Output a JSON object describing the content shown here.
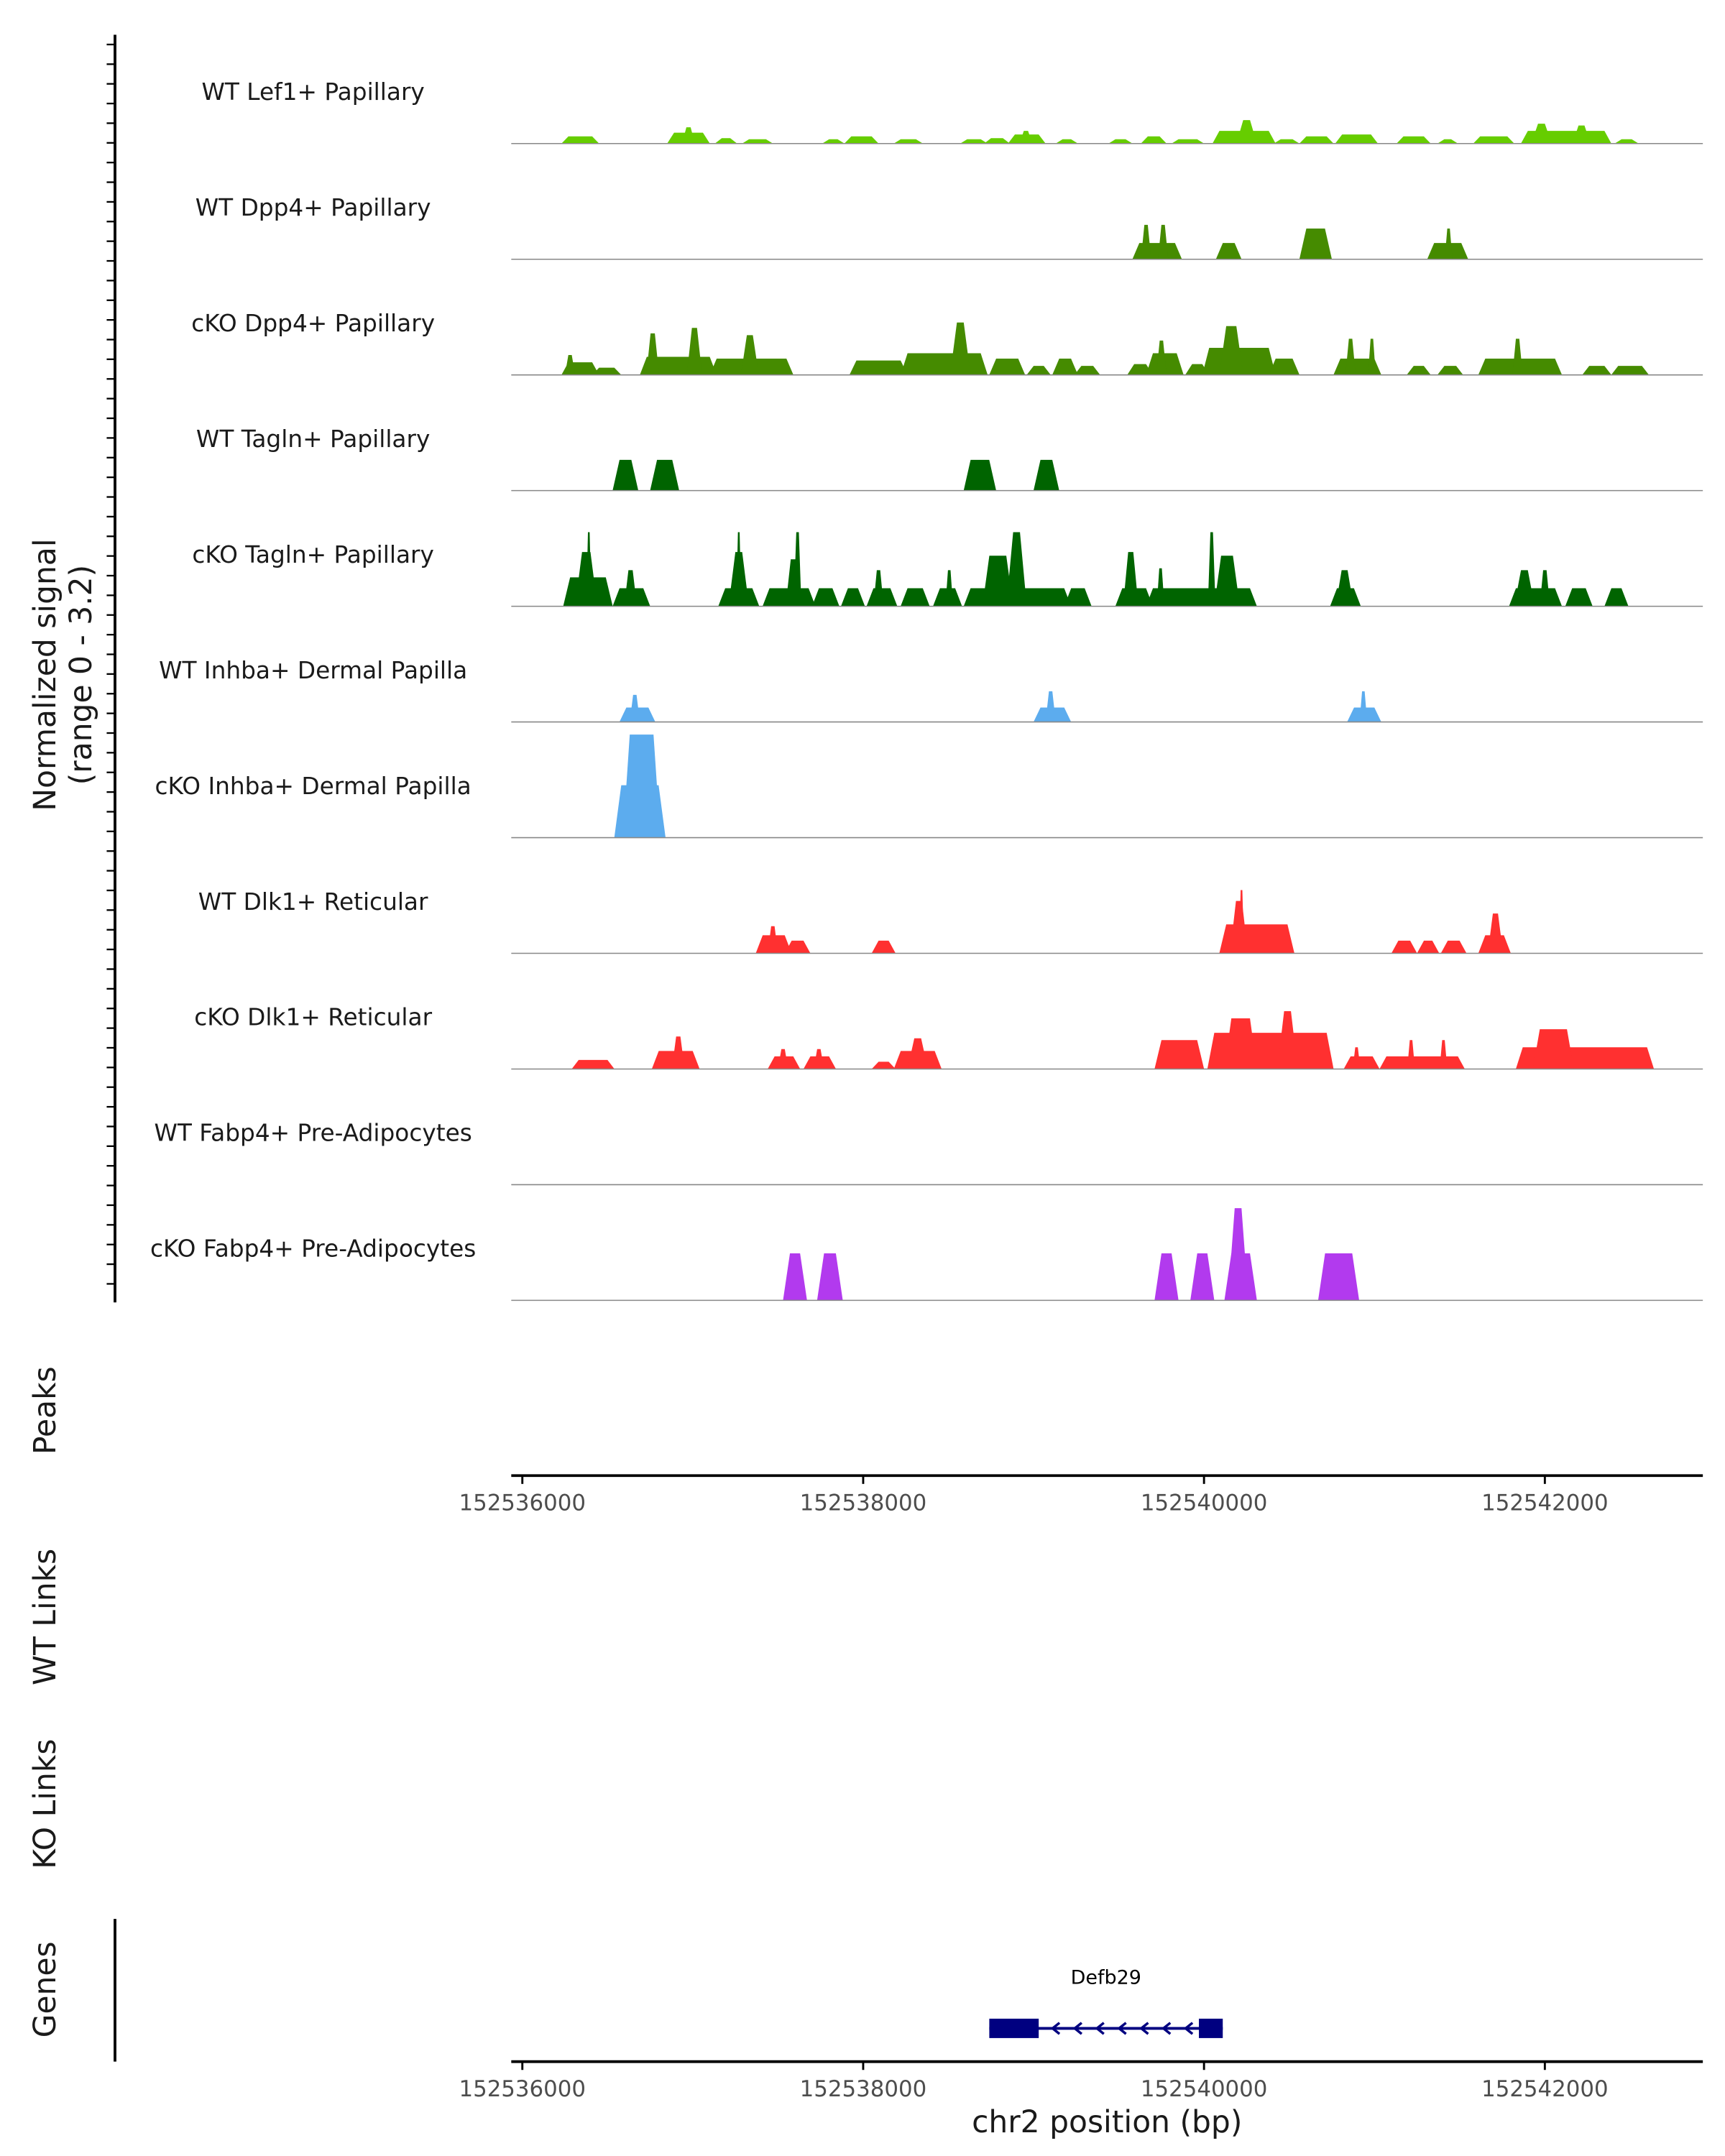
{
  "chart_data": {
    "type": "area",
    "title": "",
    "ylabel": "Normalized signal",
    "ylabel_sub": "(range 0 - 3.2)",
    "ylim": [
      0,
      3.2
    ],
    "xlabel": "chr2 position (bp)",
    "xlim": [
      152535935,
      152542927
    ],
    "xticks": [
      152536000,
      152538000,
      152540000,
      152542000
    ],
    "xtick_labels": [
      "152536000",
      "152538000",
      "152540000",
      "152542000"
    ],
    "panel_labels": {
      "peaks": "Peaks",
      "wt_links": "WT Links",
      "ko_links": "KO Links",
      "genes": "Genes"
    },
    "note": "blocks are [start_bp, end_bp, normalized_signal]",
    "tracks": [
      {
        "name": "WT Lef1+ Papillary",
        "color": "#66CD00",
        "blocks": [
          [
            152536250,
            152536430,
            0.2
          ],
          [
            152536870,
            152537080,
            0.3
          ],
          [
            152536950,
            152537000,
            0.45
          ],
          [
            152537150,
            152537240,
            0.15
          ],
          [
            152537310,
            152537450,
            0.12
          ],
          [
            152537780,
            152537870,
            0.12
          ],
          [
            152537910,
            152538070,
            0.2
          ],
          [
            152538200,
            152538330,
            0.12
          ],
          [
            152538590,
            152538710,
            0.12
          ],
          [
            152538730,
            152538840,
            0.15
          ],
          [
            152538870,
            152539050,
            0.25
          ],
          [
            152538930,
            152538980,
            0.35
          ],
          [
            152539150,
            152539240,
            0.12
          ],
          [
            152539460,
            152539560,
            0.12
          ],
          [
            152539650,
            152539760,
            0.2
          ],
          [
            152539830,
            152539980,
            0.12
          ],
          [
            152540070,
            152540400,
            0.35
          ],
          [
            152540210,
            152540290,
            0.65
          ],
          [
            152540430,
            152540540,
            0.12
          ],
          [
            152540580,
            152540740,
            0.2
          ],
          [
            152540790,
            152541000,
            0.25
          ],
          [
            152541150,
            152541310,
            0.2
          ],
          [
            152541390,
            152541470,
            0.12
          ],
          [
            152541600,
            152541800,
            0.2
          ],
          [
            152541880,
            152542370,
            0.35
          ],
          [
            152541940,
            152542020,
            0.55
          ],
          [
            152542180,
            152542250,
            0.5
          ],
          [
            152542430,
            152542530,
            0.12
          ]
        ]
      },
      {
        "name": "WT Dpp4+ Papillary",
        "color": "#458B00",
        "blocks": [
          [
            152539600,
            152539850,
            0.45
          ],
          [
            152539640,
            152539680,
            0.95
          ],
          [
            152539740,
            152539780,
            0.95
          ],
          [
            152540090,
            152540200,
            0.45
          ],
          [
            152540580,
            152540730,
            0.85
          ],
          [
            152541330,
            152541530,
            0.45
          ],
          [
            152541420,
            152541450,
            0.85
          ]
        ]
      },
      {
        "name": "cKO Dpp4+ Papillary",
        "color": "#458B00",
        "blocks": [
          [
            152536250,
            152536430,
            0.35
          ],
          [
            152536260,
            152536300,
            0.55
          ],
          [
            152536430,
            152536560,
            0.2
          ],
          [
            152536710,
            152537120,
            0.5
          ],
          [
            152536740,
            152536790,
            1.15
          ],
          [
            152536980,
            152537040,
            1.3
          ],
          [
            152537120,
            152537570,
            0.45
          ],
          [
            152537300,
            152537370,
            1.1
          ],
          [
            152537940,
            152538240,
            0.4
          ],
          [
            152538240,
            152538710,
            0.6
          ],
          [
            152538530,
            152538610,
            1.45
          ],
          [
            152538760,
            152538930,
            0.45
          ],
          [
            152538980,
            152539080,
            0.25
          ],
          [
            152539130,
            152539240,
            0.45
          ],
          [
            152539260,
            152539370,
            0.25
          ],
          [
            152539570,
            152539680,
            0.3
          ],
          [
            152539680,
            152539860,
            0.6
          ],
          [
            152539730,
            152539770,
            0.95
          ],
          [
            152539910,
            152540010,
            0.3
          ],
          [
            152540010,
            152540400,
            0.75
          ],
          [
            152540110,
            152540210,
            1.35
          ],
          [
            152540400,
            152540540,
            0.45
          ],
          [
            152540780,
            152541020,
            0.45
          ],
          [
            152540840,
            152540880,
            1.0
          ],
          [
            152540970,
            152541000,
            1.0
          ],
          [
            152541210,
            152541310,
            0.25
          ],
          [
            152541390,
            152541500,
            0.25
          ],
          [
            152541630,
            152542080,
            0.45
          ],
          [
            152541820,
            152541860,
            1.0
          ],
          [
            152542240,
            152542370,
            0.25
          ],
          [
            152542410,
            152542590,
            0.25
          ]
        ]
      },
      {
        "name": "WT Tagln+ Papillary",
        "color": "#006400",
        "blocks": [
          [
            152536550,
            152536660,
            0.85
          ],
          [
            152536770,
            152536900,
            0.85
          ],
          [
            152538610,
            152538760,
            0.85
          ],
          [
            152539020,
            152539130,
            0.85
          ]
        ]
      },
      {
        "name": "cKO Tagln+ Papillary",
        "color": "#006400",
        "blocks": [
          [
            152536260,
            152536510,
            0.8
          ],
          [
            152536330,
            152536420,
            1.5
          ],
          [
            152536380,
            152536400,
            2.05
          ],
          [
            152536550,
            152536730,
            0.5
          ],
          [
            152536610,
            152536660,
            1.0
          ],
          [
            152537170,
            152537370,
            0.5
          ],
          [
            152537230,
            152537310,
            1.5
          ],
          [
            152537260,
            152537280,
            2.05
          ],
          [
            152537430,
            152537700,
            0.5
          ],
          [
            152537560,
            152537620,
            1.3
          ],
          [
            152537600,
            152537630,
            2.05
          ],
          [
            152537720,
            152537840,
            0.5
          ],
          [
            152537890,
            152537990,
            0.5
          ],
          [
            152538040,
            152538180,
            0.5
          ],
          [
            152538070,
            152538110,
            1.0
          ],
          [
            152538240,
            152538370,
            0.5
          ],
          [
            152538430,
            152538560,
            0.5
          ],
          [
            152538490,
            152538520,
            1.0
          ],
          [
            152538610,
            152539200,
            0.5
          ],
          [
            152538720,
            152538860,
            1.4
          ],
          [
            152538860,
            152538940,
            2.05
          ],
          [
            152539200,
            152539320,
            0.5
          ],
          [
            152539500,
            152539680,
            0.5
          ],
          [
            152539540,
            152539600,
            1.5
          ],
          [
            152539680,
            152540290,
            0.5
          ],
          [
            152539730,
            152539760,
            1.05
          ],
          [
            152540030,
            152540060,
            2.05
          ],
          [
            152540080,
            152540190,
            1.4
          ],
          [
            152540760,
            152540900,
            0.5
          ],
          [
            152540790,
            152540860,
            1.0
          ],
          [
            152541810,
            152542080,
            0.5
          ],
          [
            152541840,
            152541920,
            1.0
          ],
          [
            152541980,
            152542020,
            1.0
          ],
          [
            152542140,
            152542260,
            0.5
          ],
          [
            152542370,
            152542470,
            0.5
          ]
        ]
      },
      {
        "name": "WT Inhba+ Dermal Papilla",
        "color": "#5CACEE",
        "blocks": [
          [
            152536590,
            152536760,
            0.4
          ],
          [
            152536640,
            152536680,
            0.75
          ],
          [
            152539020,
            152539200,
            0.4
          ],
          [
            152539080,
            152539120,
            0.85
          ],
          [
            152540860,
            152541020,
            0.4
          ],
          [
            152540920,
            152540950,
            0.85
          ]
        ]
      },
      {
        "name": "cKO Inhba+ Dermal Papilla",
        "color": "#5CACEE",
        "blocks": [
          [
            152536560,
            152536820,
            1.45
          ],
          [
            152536610,
            152536790,
            2.85
          ]
        ]
      },
      {
        "name": "WT Dlk1+ Reticular",
        "color": "#FF3030",
        "blocks": [
          [
            152537390,
            152537560,
            0.5
          ],
          [
            152537450,
            152537490,
            0.75
          ],
          [
            152537560,
            152537670,
            0.35
          ],
          [
            152538070,
            152538170,
            0.35
          ],
          [
            152540110,
            152540510,
            0.8
          ],
          [
            152540170,
            152540240,
            1.45
          ],
          [
            152540210,
            152540230,
            1.75
          ],
          [
            152541120,
            152541230,
            0.35
          ],
          [
            152541270,
            152541360,
            0.35
          ],
          [
            152541410,
            152541520,
            0.35
          ],
          [
            152541630,
            152541780,
            0.5
          ],
          [
            152541680,
            152541740,
            1.1
          ]
        ]
      },
      {
        "name": "cKO Dlk1+ Reticular",
        "color": "#FF3030",
        "blocks": [
          [
            152536310,
            152536520,
            0.25
          ],
          [
            152536780,
            152537020,
            0.5
          ],
          [
            152536890,
            152536940,
            0.9
          ],
          [
            152537460,
            152537610,
            0.35
          ],
          [
            152537510,
            152537550,
            0.55
          ],
          [
            152537670,
            152537820,
            0.35
          ],
          [
            152537720,
            152537760,
            0.55
          ],
          [
            152538070,
            152538170,
            0.2
          ],
          [
            152538200,
            152538440,
            0.5
          ],
          [
            152538280,
            152538360,
            0.85
          ],
          [
            152539730,
            152539980,
            0.8
          ],
          [
            152540040,
            152540740,
            1.0
          ],
          [
            152540140,
            152540290,
            1.4
          ],
          [
            152540450,
            152540530,
            1.6
          ],
          [
            152540840,
            152541010,
            0.35
          ],
          [
            152540880,
            152540910,
            0.6
          ],
          [
            152541050,
            152541510,
            0.35
          ],
          [
            152541200,
            152541230,
            0.8
          ],
          [
            152541390,
            152541420,
            0.8
          ],
          [
            152541850,
            152542620,
            0.6
          ],
          [
            152541950,
            152542150,
            1.1
          ]
        ]
      },
      {
        "name": "WT Fabp4+ Pre-Adipocytes",
        "color": "#B23AEE",
        "blocks": []
      },
      {
        "name": "cKO Fabp4+ Pre-Adipocytes",
        "color": "#B23AEE",
        "blocks": [
          [
            152537550,
            152537650,
            1.3
          ],
          [
            152537750,
            152537860,
            1.3
          ],
          [
            152539730,
            152539830,
            1.3
          ],
          [
            152539940,
            152540040,
            1.3
          ],
          [
            152540140,
            152540290,
            1.3
          ],
          [
            152540160,
            152540240,
            2.55
          ],
          [
            152540690,
            152540890,
            1.3
          ]
        ]
      }
    ],
    "gene": {
      "name": "Defb29",
      "strand": "-",
      "color": "#000080",
      "start": 152538740,
      "end": 152540110,
      "exons": [
        [
          152538740,
          152539030
        ],
        [
          152539970,
          152540110
        ]
      ]
    }
  }
}
